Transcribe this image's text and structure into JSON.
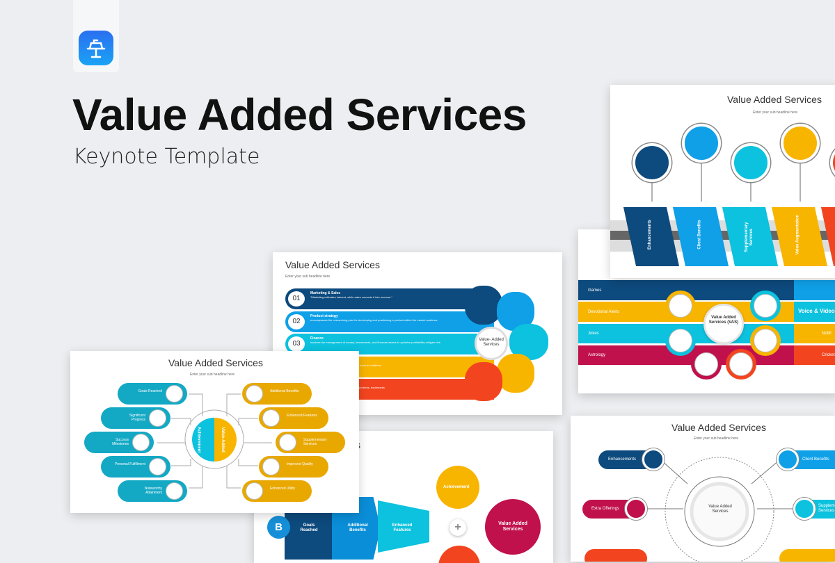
{
  "hero": {
    "title": "Value Added Services",
    "subtitle": "Keynote Template",
    "app_icon": "keynote-podium-icon"
  },
  "colors": {
    "navy": "#0d4a7d",
    "blue": "#0fa0e8",
    "cyan": "#0cc2de",
    "yellow": "#f8b500",
    "red": "#f2451f",
    "crimson": "#c0114c"
  },
  "slide_title": "Value Added Services",
  "slide_sub": "Enter your sub headline here",
  "slide_ribbons": {
    "items": [
      "Enhancements",
      "Client Benefits",
      "Supplementary Services",
      "Value Augmentation"
    ]
  },
  "slide_vas": {
    "center": "Value Added Services (VAS)",
    "left": [
      "Games",
      "Devotional Alerts",
      "Jokes",
      "Astrology"
    ],
    "right": [
      "Voice & Video",
      "Notifi",
      "Cricket"
    ]
  },
  "slide_list": {
    "center": "Value- Added Services",
    "rows": [
      {
        "num": "01",
        "title": "Marketing & Sales",
        "desc": "\"Marketing cultivates interest, while sales converts it into revenue.\""
      },
      {
        "num": "02",
        "title": "Product strategy",
        "desc": "encompasses the overarching plan for developing and positioning a product within the market audience"
      },
      {
        "num": "03",
        "title": "Finance",
        "desc": "involves the management of money, investments, and financial assets to optimize profitability mitigate risk"
      },
      {
        "num": "",
        "title": "",
        "desc": "e within an organization, covering areas such as relations."
      },
      {
        "num": "",
        "title": "",
        "desc": "safeguarding a company's legal rights and tents, trademarks."
      }
    ]
  },
  "slide_puzzle": {
    "left_center": "Achievement",
    "right_center": "Value-Added",
    "left": [
      "Goals Reached",
      "Significant Progress",
      "Success Milestones",
      "Personal Fulfillment",
      "Noteworthy Attainment"
    ],
    "right": [
      "Additional Benefits",
      "Enhanced Features",
      "Supplementary Services",
      "Improved Quality",
      "Enhanced Utility"
    ]
  },
  "slide_flow": {
    "title_fragment": "s",
    "letter": "B",
    "steps": [
      "Goals Reached",
      "Additional Benefits",
      "Enhanced Features"
    ],
    "achievement": "Achievement",
    "plus": "+",
    "result": "Value Added Services"
  },
  "slide_circle": {
    "center": "Value Added Services",
    "items": [
      "Enhancements",
      "Client Benefits",
      "Extra Offerings",
      "Supplementary Services"
    ]
  }
}
